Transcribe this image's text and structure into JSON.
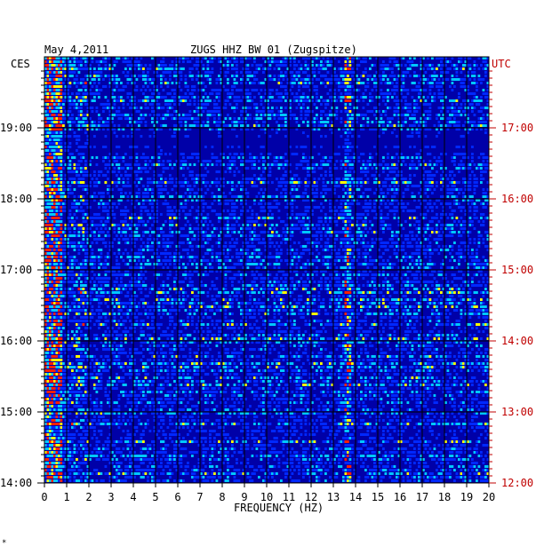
{
  "header": {
    "date": "May 4,2011",
    "station": "ZUGS HHZ BW 01 (Zugspitze)",
    "left_tz": "CES",
    "right_tz": "UTC"
  },
  "footer": {
    "mark": "*"
  },
  "chart_data": {
    "type": "heatmap",
    "title": "ZUGS HHZ BW 01 (Zugspitze)",
    "subtitle": "May 4,2011",
    "xlabel": "FREQUENCY (HZ)",
    "ylabel_left": "CES",
    "ylabel_right": "UTC",
    "xlim": [
      0,
      20
    ],
    "x_ticks": [
      "0",
      "1",
      "2",
      "3",
      "4",
      "5",
      "6",
      "7",
      "8",
      "9",
      "10",
      "11",
      "12",
      "13",
      "14",
      "15",
      "16",
      "17",
      "18",
      "19",
      "20"
    ],
    "y_ticks_left": [
      "19:00",
      "18:00",
      "17:00",
      "16:00",
      "15:00",
      "14:00"
    ],
    "y_ticks_right": [
      "17:00",
      "16:00",
      "15:00",
      "14:00",
      "13:00",
      "12:00"
    ],
    "colors": {
      "background": "#0000a8",
      "low": "#0028ff",
      "mid": "#00c8ff",
      "high": "#ffff00",
      "peak": "#ff2000",
      "axis_right": "#c00000"
    },
    "features": [
      {
        "kind": "low-frequency energy",
        "freq_range_hz": [
          0,
          0.8
        ],
        "intensity": "high"
      },
      {
        "kind": "persistent spectral line",
        "freq_hz": 13.6,
        "intensity": "medium"
      },
      {
        "kind": "transient band",
        "freq_range_hz": [
          14,
          19.5
        ],
        "intensity": "medium"
      }
    ]
  }
}
